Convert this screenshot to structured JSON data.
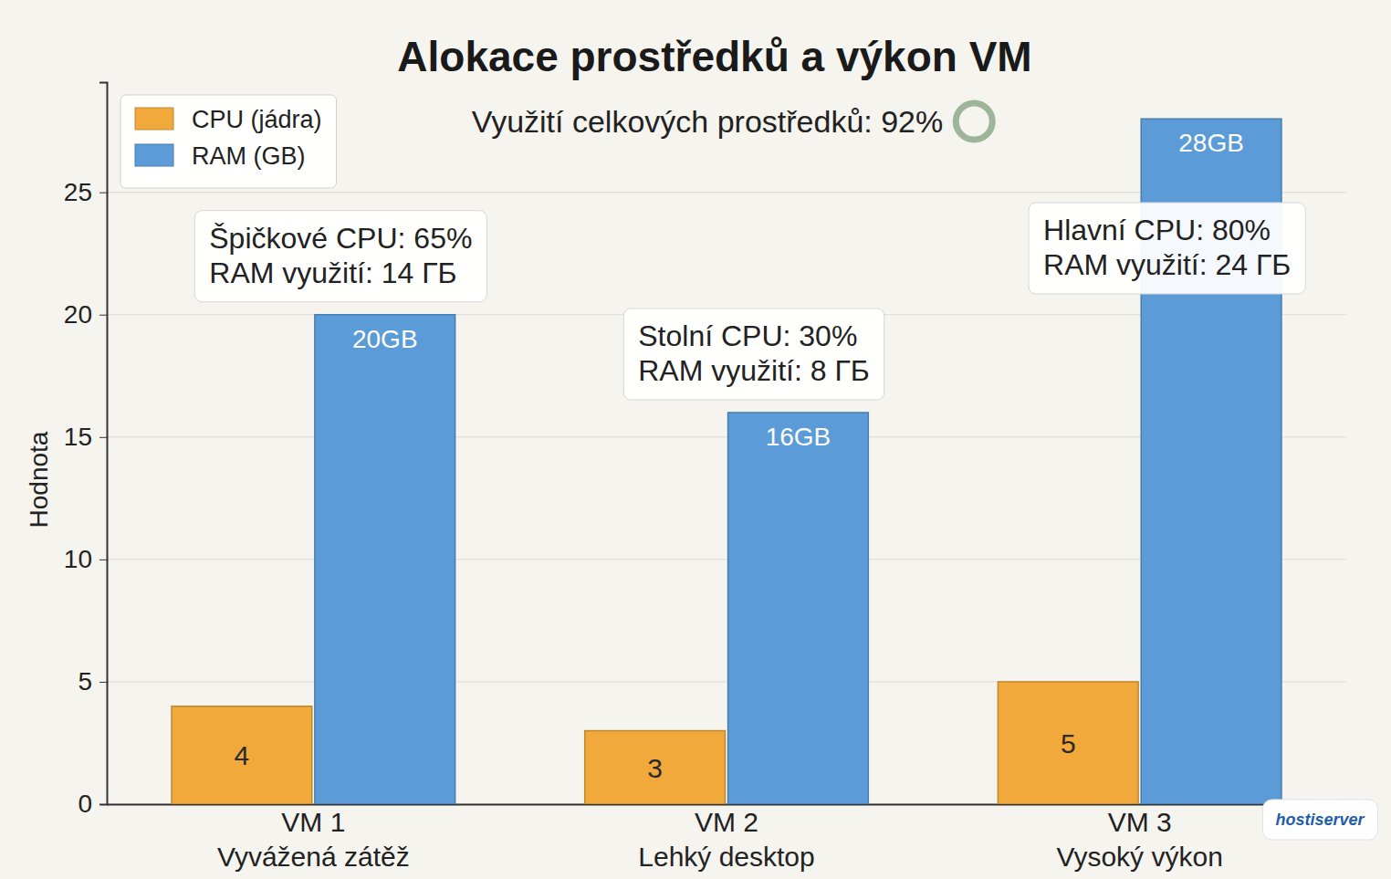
{
  "chart_data": {
    "type": "bar",
    "title": "Alokace prostředků a výkon VM",
    "subtitle": "Využití celkových prostředků: 92%",
    "y_label": "Hodnota",
    "categories": [
      "VM 1\nVyvážená zátěž",
      "VM 2\nLehký desktop",
      "VM 3\nVysoký výkon"
    ],
    "series": [
      {
        "name": "CPU (jádra)",
        "color": "#f0a93a",
        "values": [
          4,
          3,
          5
        ]
      },
      {
        "name": "RAM (GB)",
        "color": "#5b9bd8",
        "values": [
          20,
          16,
          28
        ],
        "value_labels": [
          "20GB",
          "16GB",
          "28GB"
        ]
      }
    ],
    "ylim": [
      0,
      29.5
    ],
    "yticks": [
      0,
      5,
      10,
      15,
      20,
      25
    ],
    "grid": true,
    "legend": "upper left",
    "data_labels": true,
    "annotations": [
      {
        "lines": [
          "Špičkové CPU: 65%",
          "RAM využití: 14 ГБ"
        ]
      },
      {
        "lines": [
          "Stolní CPU: 30%",
          "RAM využití: 8 ГБ"
        ]
      },
      {
        "lines": [
          "Hlavní CPU: 80%",
          "RAM využití: 24 ГБ"
        ]
      }
    ],
    "watermark": "hostiserver"
  }
}
